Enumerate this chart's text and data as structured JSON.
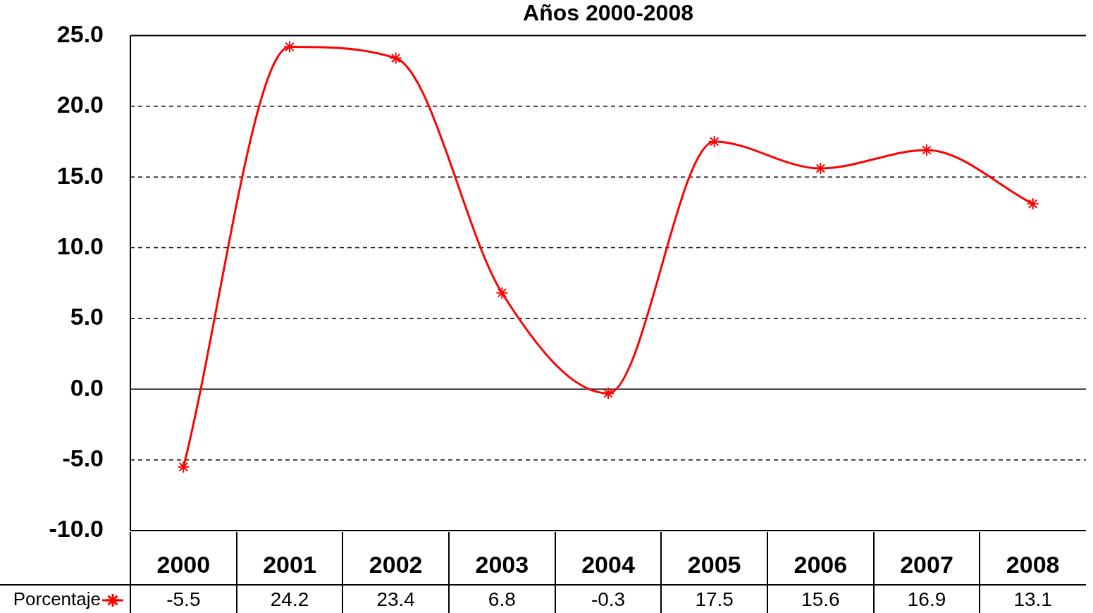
{
  "chart_data": {
    "type": "line",
    "title": "Años 2000-2008",
    "categories": [
      "2000",
      "2001",
      "2002",
      "2003",
      "2004",
      "2005",
      "2006",
      "2007",
      "2008"
    ],
    "series": [
      {
        "name": "Porcentaje",
        "color": "#ff0000",
        "values": [
          -5.5,
          24.2,
          23.4,
          6.8,
          -0.3,
          17.5,
          15.6,
          16.9,
          13.1
        ]
      }
    ],
    "ylim": [
      -10,
      25
    ],
    "yticks": [
      {
        "value": -10,
        "label": "-10.0"
      },
      {
        "value": -5,
        "label": "-5.0"
      },
      {
        "value": 0,
        "label": "0.0"
      },
      {
        "value": 5,
        "label": "5.0"
      },
      {
        "value": 10,
        "label": "10.0"
      },
      {
        "value": 15,
        "label": "15.0"
      },
      {
        "value": 20,
        "label": "20.0"
      },
      {
        "value": 25,
        "label": "25.0"
      }
    ],
    "grid": "y",
    "marker": "cross",
    "line_style": "solid",
    "legend": "bottom",
    "data_labels": true
  }
}
